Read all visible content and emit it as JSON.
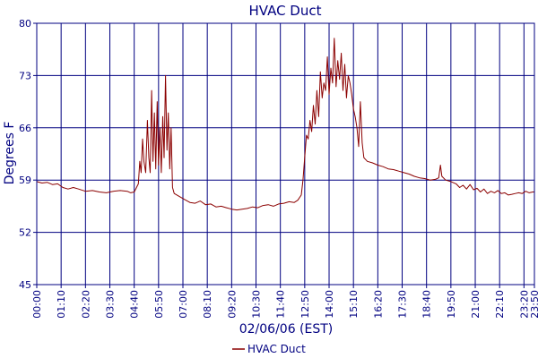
{
  "chart_data": {
    "type": "line",
    "title": "HVAC Duct",
    "xlabel": "02/06/06 (EST)",
    "ylabel": "Degrees F",
    "ylim": [
      45,
      80
    ],
    "yticks": [
      "45",
      "52",
      "59",
      "66",
      "73",
      "80"
    ],
    "xticks": [
      "00:00",
      "01:10",
      "02:20",
      "03:30",
      "04:40",
      "05:50",
      "07:00",
      "08:10",
      "09:20",
      "10:30",
      "11:40",
      "12:50",
      "14:00",
      "15:10",
      "16:20",
      "17:30",
      "18:40",
      "19:50",
      "21:00",
      "22:10",
      "23:20",
      "23:50"
    ],
    "xlim_minutes": [
      0,
      1430
    ],
    "grid": true,
    "legend": {
      "position": "bottom-center"
    },
    "colors": {
      "series": "#8b0000",
      "axis": "#000080",
      "grid": "#000080",
      "text": "#000080"
    },
    "series": [
      {
        "name": "HVAC Duct",
        "points": [
          [
            0,
            58.8
          ],
          [
            15,
            58.6
          ],
          [
            30,
            58.7
          ],
          [
            45,
            58.4
          ],
          [
            60,
            58.5
          ],
          [
            75,
            58.0
          ],
          [
            90,
            57.8
          ],
          [
            105,
            58.0
          ],
          [
            120,
            57.8
          ],
          [
            140,
            57.5
          ],
          [
            160,
            57.6
          ],
          [
            180,
            57.4
          ],
          [
            200,
            57.3
          ],
          [
            220,
            57.5
          ],
          [
            240,
            57.6
          ],
          [
            260,
            57.5
          ],
          [
            270,
            57.3
          ],
          [
            280,
            57.4
          ],
          [
            292,
            58.5
          ],
          [
            296,
            61.5
          ],
          [
            300,
            60.0
          ],
          [
            304,
            64.5
          ],
          [
            308,
            61.5
          ],
          [
            313,
            60.0
          ],
          [
            318,
            67.0
          ],
          [
            322,
            62.0
          ],
          [
            326,
            60.0
          ],
          [
            330,
            71.0
          ],
          [
            334,
            61.5
          ],
          [
            338,
            68.0
          ],
          [
            342,
            60.5
          ],
          [
            346,
            69.5
          ],
          [
            350,
            61.0
          ],
          [
            354,
            66.0
          ],
          [
            358,
            60.0
          ],
          [
            362,
            67.5
          ],
          [
            366,
            62.0
          ],
          [
            370,
            73.0
          ],
          [
            374,
            63.0
          ],
          [
            378,
            68.0
          ],
          [
            382,
            60.5
          ],
          [
            386,
            66.0
          ],
          [
            390,
            58.0
          ],
          [
            395,
            57.2
          ],
          [
            410,
            56.8
          ],
          [
            425,
            56.4
          ],
          [
            440,
            56.0
          ],
          [
            455,
            55.9
          ],
          [
            470,
            56.2
          ],
          [
            485,
            55.7
          ],
          [
            500,
            55.8
          ],
          [
            515,
            55.4
          ],
          [
            530,
            55.5
          ],
          [
            545,
            55.3
          ],
          [
            560,
            55.1
          ],
          [
            575,
            55.0
          ],
          [
            590,
            55.1
          ],
          [
            605,
            55.2
          ],
          [
            620,
            55.4
          ],
          [
            635,
            55.3
          ],
          [
            650,
            55.6
          ],
          [
            665,
            55.7
          ],
          [
            680,
            55.5
          ],
          [
            695,
            55.8
          ],
          [
            710,
            55.9
          ],
          [
            725,
            56.1
          ],
          [
            740,
            56.0
          ],
          [
            750,
            56.3
          ],
          [
            760,
            57.0
          ],
          [
            765,
            59.0
          ],
          [
            770,
            62.0
          ],
          [
            775,
            65.0
          ],
          [
            780,
            64.5
          ],
          [
            785,
            67.0
          ],
          [
            790,
            65.5
          ],
          [
            795,
            69.0
          ],
          [
            800,
            66.5
          ],
          [
            805,
            71.0
          ],
          [
            810,
            67.5
          ],
          [
            815,
            73.5
          ],
          [
            820,
            70.0
          ],
          [
            825,
            72.0
          ],
          [
            830,
            71.0
          ],
          [
            835,
            75.5
          ],
          [
            840,
            70.5
          ],
          [
            845,
            74.0
          ],
          [
            850,
            72.0
          ],
          [
            855,
            78.0
          ],
          [
            860,
            71.5
          ],
          [
            865,
            75.0
          ],
          [
            870,
            72.5
          ],
          [
            875,
            76.0
          ],
          [
            880,
            71.0
          ],
          [
            885,
            74.5
          ],
          [
            890,
            70.0
          ],
          [
            895,
            73.0
          ],
          [
            900,
            72.0
          ],
          [
            905,
            70.5
          ],
          [
            910,
            68.5
          ],
          [
            915,
            67.5
          ],
          [
            920,
            66.0
          ],
          [
            925,
            63.5
          ],
          [
            930,
            69.5
          ],
          [
            935,
            64.0
          ],
          [
            940,
            62.0
          ],
          [
            950,
            61.5
          ],
          [
            965,
            61.3
          ],
          [
            980,
            61.0
          ],
          [
            995,
            60.8
          ],
          [
            1010,
            60.5
          ],
          [
            1025,
            60.4
          ],
          [
            1040,
            60.2
          ],
          [
            1055,
            60.0
          ],
          [
            1070,
            59.8
          ],
          [
            1085,
            59.5
          ],
          [
            1100,
            59.3
          ],
          [
            1115,
            59.2
          ],
          [
            1130,
            59.0
          ],
          [
            1145,
            59.1
          ],
          [
            1155,
            59.3
          ],
          [
            1160,
            61.0
          ],
          [
            1164,
            59.5
          ],
          [
            1175,
            59.0
          ],
          [
            1190,
            58.8
          ],
          [
            1205,
            58.5
          ],
          [
            1215,
            58.0
          ],
          [
            1225,
            58.3
          ],
          [
            1235,
            57.8
          ],
          [
            1245,
            58.4
          ],
          [
            1255,
            57.7
          ],
          [
            1265,
            57.9
          ],
          [
            1275,
            57.4
          ],
          [
            1285,
            57.8
          ],
          [
            1295,
            57.2
          ],
          [
            1305,
            57.5
          ],
          [
            1315,
            57.3
          ],
          [
            1325,
            57.6
          ],
          [
            1335,
            57.2
          ],
          [
            1345,
            57.3
          ],
          [
            1355,
            57.0
          ],
          [
            1365,
            57.1
          ],
          [
            1375,
            57.2
          ],
          [
            1385,
            57.3
          ],
          [
            1395,
            57.2
          ],
          [
            1405,
            57.5
          ],
          [
            1415,
            57.3
          ],
          [
            1425,
            57.4
          ],
          [
            1430,
            57.4
          ]
        ]
      }
    ]
  }
}
